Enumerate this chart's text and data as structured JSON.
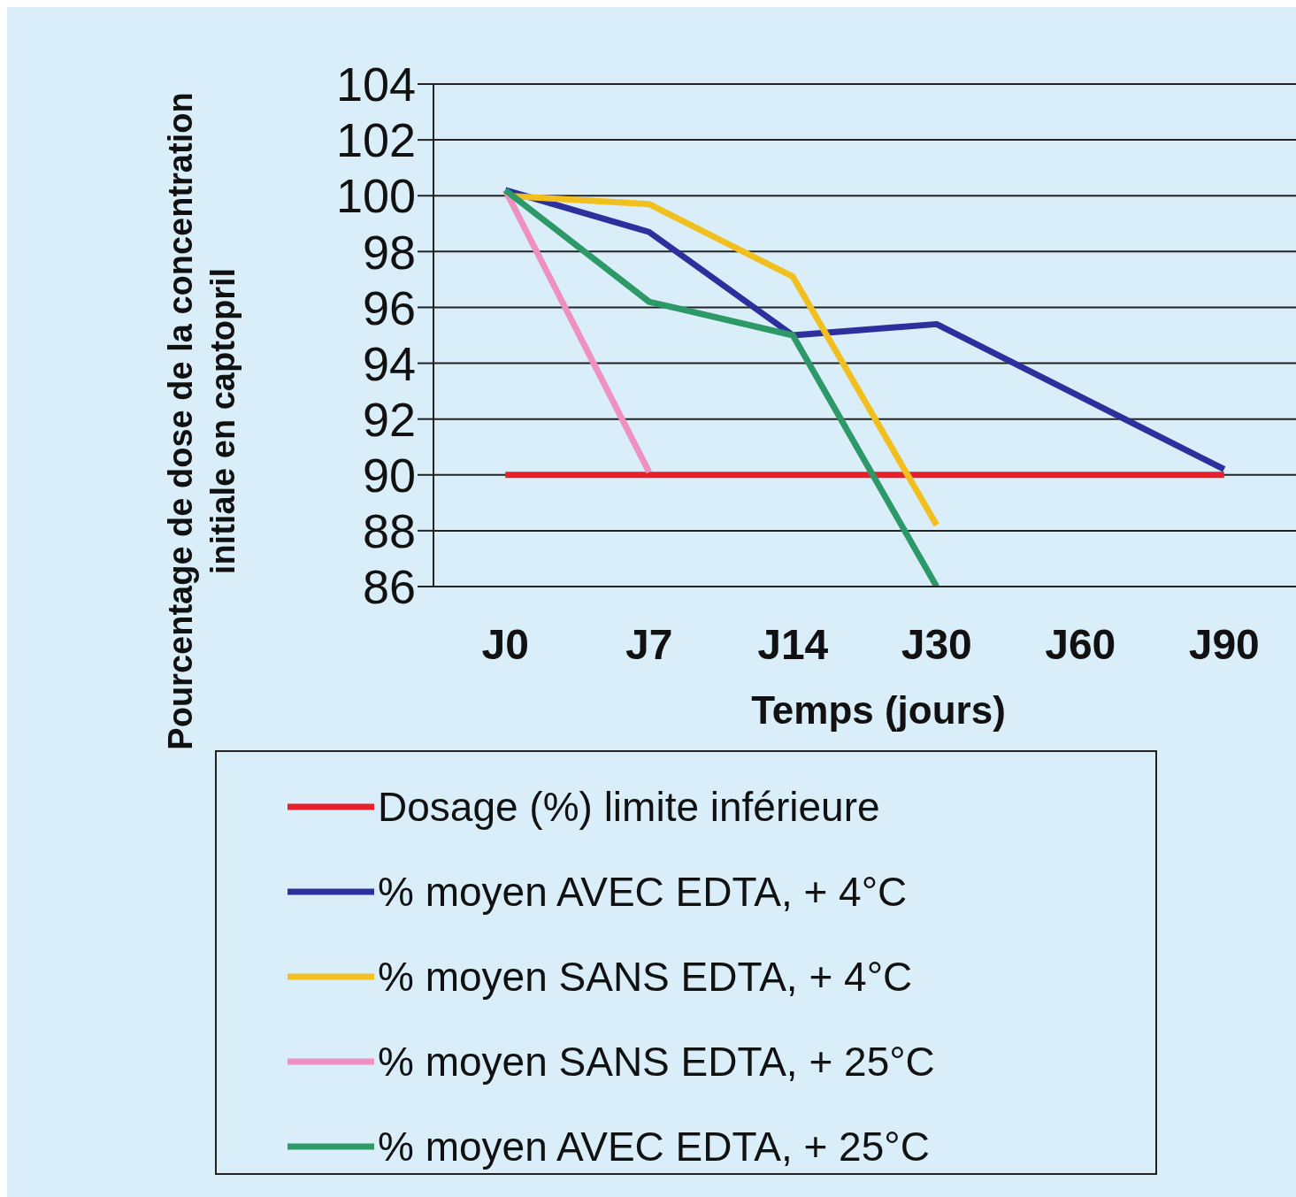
{
  "chart_data": {
    "type": "line",
    "xlabel": "Temps (jours)",
    "ylabel": "Pourcentage de dose de la concentration initiale en captopril",
    "categories": [
      "J0",
      "J7",
      "J14",
      "J30",
      "J60",
      "J90"
    ],
    "series": [
      {
        "name": "Dosage (%) limite inférieure",
        "color": "#e5222b",
        "values": [
          90,
          90,
          90,
          90,
          90,
          90
        ]
      },
      {
        "name": "% moyen AVEC EDTA, + 4°C",
        "color": "#2c2f9c",
        "values": [
          100.2,
          98.7,
          95.0,
          95.4,
          92.8,
          90.2
        ]
      },
      {
        "name": "% moyen SANS EDTA, + 4°C",
        "color": "#f2c01e",
        "values": [
          100.0,
          99.7,
          97.1,
          88.2,
          null,
          null
        ]
      },
      {
        "name": "% moyen SANS EDTA, + 25°C",
        "color": "#ee90c0",
        "values": [
          100.2,
          90.1,
          null,
          null,
          null,
          null
        ]
      },
      {
        "name": "% moyen AVEC EDTA, + 25°C",
        "color": "#2e9968",
        "values": [
          100.2,
          96.2,
          95.0,
          86.0,
          null,
          null
        ]
      }
    ],
    "ylim": [
      86,
      104
    ],
    "yticks": [
      86,
      88,
      90,
      92,
      94,
      96,
      98,
      100,
      102,
      104
    ],
    "grid": "y",
    "legend": "bottom",
    "marker": "none",
    "line_style": "solid"
  }
}
